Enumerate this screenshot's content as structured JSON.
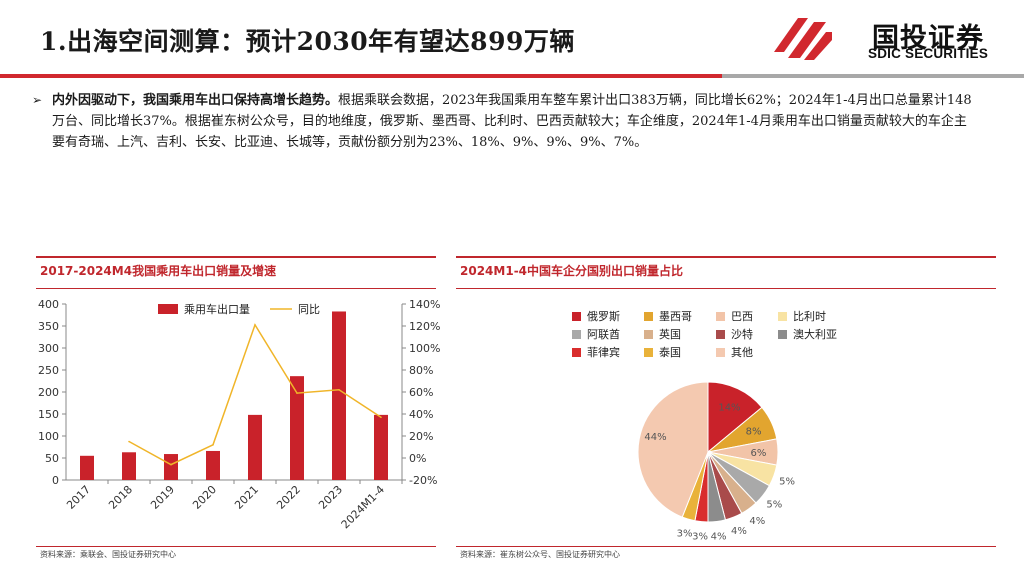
{
  "slide": {
    "title": "1.出海空间测算：预计2030年有望达899万辆",
    "bullet_lead": "内外因驱动下，我国乘用车出口保持高增长趋势。",
    "bullet_body": "根据乘联会数据，2023年我国乘用车整车累计出口383万辆，同比增长62%；2024年1-4月出口总量累计148万台、同比增长37%。根据崔东树公众号，目的地维度，俄罗斯、墨西哥、比利时、巴西贡献较大；车企维度，2024年1-4月乘用车出口销量贡献较大的车企主要有奇瑞、上汽、吉利、长安、比亚迪、长城等，贡献份额分别为23%、18%、9%、9%、9%、7%。"
  },
  "logo": {
    "cn": "国投证券",
    "en": "SDIC SECURITIES",
    "brand_color": "#d1282e"
  },
  "left_panel": {
    "title": "2017-2024M4我国乘用车出口销量及增速",
    "source": "资料来源：乘联会、国投证券研究中心"
  },
  "right_panel": {
    "title": "2024M1-4中国车企分国别出口销量占比",
    "source": "资料来源：崔东树公众号、国投证券研究中心"
  },
  "chart_data": [
    {
      "type": "bar",
      "categories": [
        "2017",
        "2018",
        "2019",
        "2020",
        "2021",
        "2022",
        "2023",
        "2024M1-4"
      ],
      "series": [
        {
          "name": "乘用车出口量",
          "type": "bar",
          "axis": "left",
          "color": "#c9222a",
          "values": [
            55,
            63,
            59,
            66,
            148,
            236,
            383,
            148
          ]
        },
        {
          "name": "同比",
          "type": "line",
          "axis": "right",
          "color": "#f0b529",
          "values": [
            null,
            15,
            -6,
            12,
            121,
            59,
            62,
            37
          ]
        }
      ],
      "y_left": {
        "min": 0,
        "max": 400,
        "ticks": [
          "0",
          "50",
          "100",
          "150",
          "200",
          "250",
          "300",
          "350",
          "400"
        ]
      },
      "y_right": {
        "min": -20,
        "max": 140,
        "ticks": [
          "-20%",
          "0%",
          "20%",
          "40%",
          "60%",
          "80%",
          "100%",
          "120%",
          "140%"
        ]
      },
      "legend": "top-center",
      "grid": false
    },
    {
      "type": "pie",
      "series": [
        {
          "name": "俄罗斯",
          "value": 14,
          "label": "14%",
          "color": "#c9222a"
        },
        {
          "name": "墨西哥",
          "value": 8,
          "label": "8%",
          "color": "#e2a52f"
        },
        {
          "name": "巴西",
          "value": 6,
          "label": "6%",
          "color": "#f2c4a8"
        },
        {
          "name": "比利时",
          "value": 5,
          "label": "5%",
          "color": "#f8e3a3"
        },
        {
          "name": "阿联酋",
          "value": 5,
          "label": "5%",
          "color": "#a9a9a9"
        },
        {
          "name": "英国",
          "value": 4,
          "label": "4%",
          "color": "#d8b08c"
        },
        {
          "name": "沙特",
          "value": 4,
          "label": "4%",
          "color": "#a94b4b"
        },
        {
          "name": "澳大利亚",
          "value": 4,
          "label": "4%",
          "color": "#8c8c8c"
        },
        {
          "name": "菲律宾",
          "value": 3,
          "label": "3%",
          "color": "#d92d2d"
        },
        {
          "name": "泰国",
          "value": 3,
          "label": "3%",
          "color": "#e9b23a"
        },
        {
          "name": "其他",
          "value": 44,
          "label": "44%",
          "color": "#f4c9b0"
        }
      ],
      "legend": "top"
    }
  ]
}
